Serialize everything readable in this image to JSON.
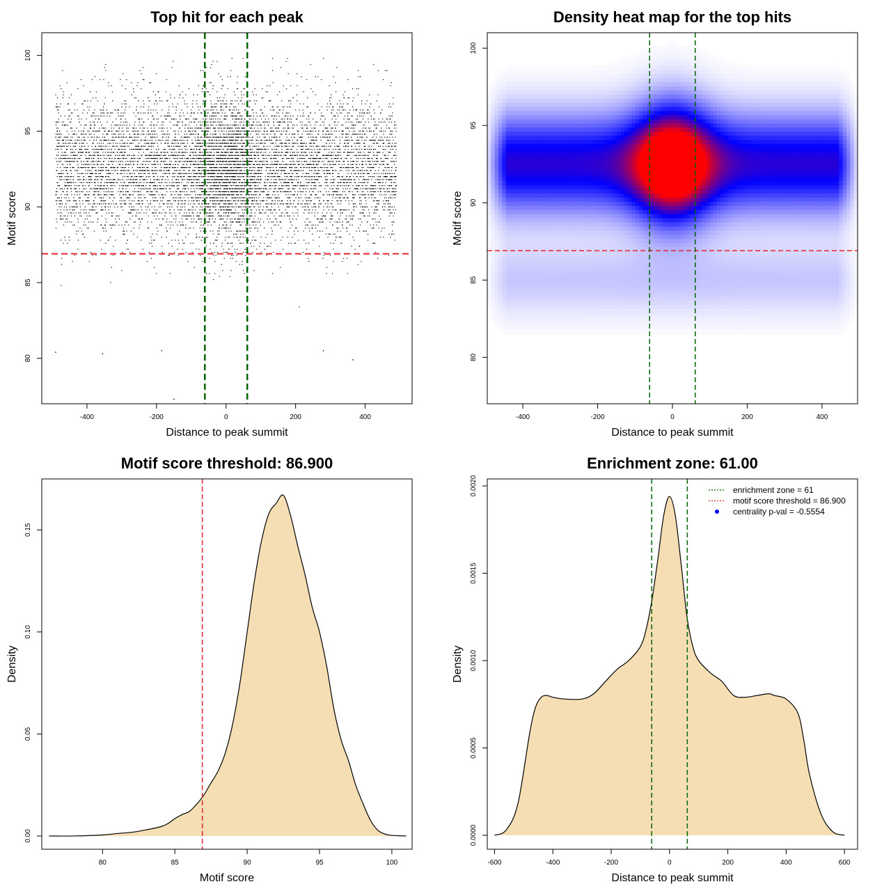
{
  "colors": {
    "threshold_line": "#e3242b",
    "zone_line": "#006400",
    "density_fill": "#f5deb3",
    "heat_low": "#ffffff",
    "heat_mid": "#0000ff",
    "heat_high": "#ff0000",
    "legend_point": "#0000ff"
  },
  "chart_data": [
    {
      "id": "scatter",
      "type": "scatter",
      "title": "Top hit for each peak",
      "xlabel": "Distance to peak summit",
      "ylabel": "Motif score",
      "xlim": [
        -530,
        535
      ],
      "ylim": [
        77,
        101.5
      ],
      "xticks": [
        -400,
        -200,
        0,
        200,
        400
      ],
      "yticks": [
        80,
        85,
        90,
        95,
        100
      ],
      "threshold": 86.9,
      "zone": [
        -61,
        61
      ],
      "n_points": 9000,
      "point_model": {
        "x_range": [
          -490,
          490
        ],
        "central_fraction": 0.18,
        "central_sd": 60,
        "score_mean": 92.6,
        "score_sd": 2.3,
        "score_max": 99.8
      },
      "outliers": [
        [
          -150,
          77.3
        ],
        [
          -490,
          80.4
        ],
        [
          -355,
          80.3
        ],
        [
          -185,
          80.5
        ],
        [
          280,
          80.5
        ],
        [
          365,
          79.9
        ]
      ]
    },
    {
      "id": "heatmap",
      "type": "heatmap",
      "title": "Density heat map for the top hits",
      "xlabel": "Distance to peak summit",
      "ylabel": "Motif score",
      "xlim": [
        -495,
        495
      ],
      "ylim": [
        77,
        101
      ],
      "xticks": [
        -400,
        -200,
        0,
        200,
        400
      ],
      "yticks": [
        80,
        85,
        90,
        95,
        100
      ],
      "threshold": 86.9,
      "zone": [
        -61,
        61
      ],
      "peak": {
        "x": 0,
        "y": 92.5
      }
    },
    {
      "id": "score-density",
      "type": "area",
      "title": "Motif score threshold: 86.900",
      "xlabel": "Motif score",
      "ylabel": "Density",
      "xlim": [
        75.8,
        101.4
      ],
      "ylim": [
        -0.0065,
        0.175
      ],
      "xticks": [
        80,
        85,
        90,
        95,
        100
      ],
      "yticks": [
        0.0,
        0.05,
        0.1,
        0.15
      ],
      "ytick_labels": [
        "0.00",
        "0.05",
        "0.10",
        "0.15"
      ],
      "threshold": 86.9,
      "x": [
        76.3,
        78,
        80,
        81,
        82,
        83,
        84,
        84.5,
        85,
        85.5,
        86,
        86.5,
        87,
        87.5,
        88,
        88.5,
        89,
        89.5,
        90,
        90.5,
        91,
        91.5,
        92,
        92.5,
        93,
        93.5,
        94,
        94.5,
        95,
        95.5,
        96,
        96.5,
        97,
        97.5,
        98,
        98.5,
        99,
        99.5,
        100,
        100.5,
        101
      ],
      "y": [
        0.0,
        0.0,
        0.0005,
        0.0012,
        0.0018,
        0.003,
        0.0045,
        0.006,
        0.0085,
        0.0105,
        0.012,
        0.0155,
        0.02,
        0.026,
        0.032,
        0.041,
        0.055,
        0.075,
        0.1,
        0.125,
        0.145,
        0.158,
        0.163,
        0.167,
        0.157,
        0.142,
        0.128,
        0.112,
        0.1,
        0.083,
        0.062,
        0.047,
        0.037,
        0.025,
        0.016,
        0.008,
        0.003,
        0.001,
        0.0003,
        0.0001,
        0.0
      ]
    },
    {
      "id": "distance-density",
      "type": "area",
      "title": "Enrichment zone: 61.00",
      "xlabel": "Distance to peak summit",
      "ylabel": "Density",
      "xlim": [
        -625,
        645
      ],
      "ylim": [
        -8e-05,
        0.00204
      ],
      "xticks": [
        -600,
        -400,
        -200,
        0,
        200,
        400,
        600
      ],
      "yticks": [
        0.0,
        0.0005,
        0.001,
        0.0015,
        0.002
      ],
      "ytick_labels": [
        "0.0000",
        "0.0005",
        "0.0010",
        "0.0015",
        "0.0020"
      ],
      "zone": [
        -61,
        61
      ],
      "x": [
        -600,
        -560,
        -520,
        -480,
        -460,
        -440,
        -420,
        -400,
        -360,
        -300,
        -260,
        -220,
        -180,
        -140,
        -100,
        -80,
        -60,
        -40,
        -20,
        0,
        20,
        40,
        60,
        80,
        100,
        140,
        180,
        220,
        260,
        300,
        340,
        360,
        400,
        440,
        460,
        480,
        520,
        560,
        600
      ],
      "y": [
        0.0,
        3e-05,
        0.00018,
        0.00058,
        0.00073,
        0.00079,
        0.0008,
        0.00079,
        0.00078,
        0.00078,
        0.00081,
        0.00088,
        0.00095,
        0.001,
        0.00108,
        0.00118,
        0.00135,
        0.00158,
        0.00183,
        0.00194,
        0.00183,
        0.00155,
        0.00125,
        0.00108,
        0.001,
        0.00093,
        0.00088,
        0.0008,
        0.00079,
        0.0008,
        0.00081,
        0.0008,
        0.00078,
        0.0007,
        0.00055,
        0.00035,
        0.00012,
        2e-05,
        0.0
      ],
      "legend": [
        {
          "kind": "line",
          "color_key": "zone_line",
          "label": "enrichment zone = 61"
        },
        {
          "kind": "line",
          "color_key": "threshold_line",
          "label": "motif score threshold = 86.900"
        },
        {
          "kind": "point",
          "color_key": "legend_point",
          "label": "centrality p-val = -0.5554"
        }
      ]
    }
  ]
}
